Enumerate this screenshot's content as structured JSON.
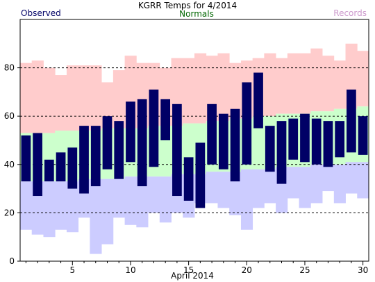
{
  "chart_data": {
    "type": "bar",
    "title": "KGRR Temps for 4/2014",
    "xlabel": "April 2014",
    "ylabel": "",
    "legend": {
      "observed": "Observed",
      "normals": "Normals",
      "records": "Records"
    },
    "colors": {
      "observed": "#000066",
      "normals": "#ccffcc",
      "records_high": "#ffcccc",
      "records_low": "#ccccff",
      "title": "#000000",
      "legend_observed": "#000066",
      "legend_normals": "#006600",
      "legend_records": "#cc99cc",
      "grid": "#000000"
    },
    "ylim": [
      0,
      100
    ],
    "xlim": [
      0.5,
      30.5
    ],
    "yticks": [
      0,
      20,
      40,
      60,
      80
    ],
    "xticks": [
      5,
      10,
      15,
      20,
      25,
      30
    ],
    "grid": "dashed horizontal",
    "days": [
      1,
      2,
      3,
      4,
      5,
      6,
      7,
      8,
      9,
      10,
      11,
      12,
      13,
      14,
      15,
      16,
      17,
      18,
      19,
      20,
      21,
      22,
      23,
      24,
      25,
      26,
      27,
      28,
      29,
      30
    ],
    "observed_high": [
      52,
      53,
      42,
      45,
      47,
      56,
      56,
      60,
      58,
      66,
      67,
      71,
      67,
      65,
      43,
      49,
      65,
      61,
      63,
      74,
      78,
      56,
      58,
      59,
      61,
      59,
      58,
      58,
      71,
      60
    ],
    "observed_low": [
      33,
      27,
      33,
      33,
      30,
      28,
      31,
      38,
      34,
      41,
      31,
      39,
      50,
      27,
      25,
      22,
      40,
      38,
      33,
      40,
      55,
      37,
      32,
      42,
      41,
      40,
      39,
      43,
      45,
      44
    ],
    "normal_high": [
      53,
      53,
      53,
      54,
      54,
      54,
      54,
      55,
      55,
      55,
      55,
      56,
      56,
      56,
      57,
      57,
      58,
      58,
      59,
      59,
      60,
      60,
      61,
      61,
      61,
      62,
      62,
      63,
      63,
      64
    ],
    "normal_low": [
      33,
      33,
      33,
      33,
      33,
      34,
      34,
      34,
      34,
      35,
      35,
      35,
      35,
      36,
      36,
      36,
      37,
      37,
      37,
      38,
      38,
      38,
      39,
      39,
      39,
      40,
      40,
      40,
      41,
      41
    ],
    "record_high": [
      82,
      83,
      80,
      77,
      81,
      81,
      81,
      74,
      79,
      85,
      82,
      82,
      80,
      84,
      84,
      86,
      85,
      86,
      82,
      83,
      84,
      86,
      84,
      86,
      86,
      88,
      85,
      83,
      90,
      87
    ],
    "record_low": [
      13,
      11,
      10,
      13,
      12,
      18,
      3,
      7,
      18,
      15,
      14,
      20,
      16,
      20,
      18,
      24,
      24,
      22,
      19,
      13,
      22,
      24,
      20,
      26,
      22,
      24,
      29,
      24,
      28,
      26
    ]
  }
}
